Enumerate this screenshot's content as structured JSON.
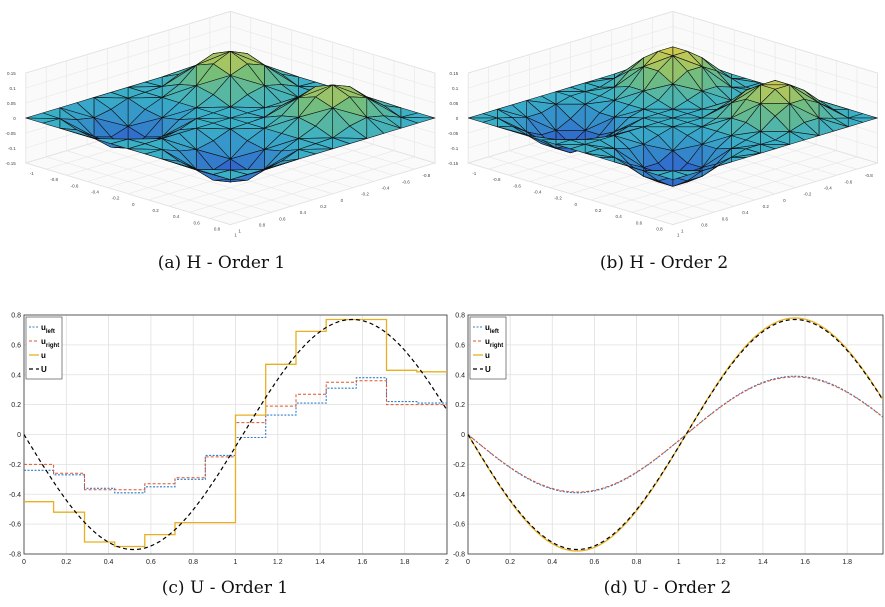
{
  "panels": [
    {
      "caption": "(a) H - Order 1"
    },
    {
      "caption": "(b) H - Order 2"
    },
    {
      "caption": "(c) U - Order 1"
    },
    {
      "caption": "(d) U - Order 2"
    }
  ],
  "colors": {
    "u_left": "#2f7fd0",
    "u_right": "#e0542a",
    "u": "#e8b020",
    "U": "#000000",
    "grid": "#e0e0e0",
    "axis": "#333333",
    "surface_peak": "#f2d040",
    "surface_trough": "#2a3fd0",
    "surface_flat": "#3ab0c8"
  },
  "chart_data": [
    {
      "type": "surface",
      "caption": "(a) H - Order 1",
      "zticks": [
        "0.15",
        "0.1",
        "0.05",
        "0",
        "-0.05",
        "-0.1",
        "-0.15"
      ],
      "xticks": [
        "-1",
        "-0.8",
        "-0.6",
        "-0.4",
        "-0.2",
        "0",
        "0.2",
        "0.4",
        "0.6",
        "0.8",
        "1"
      ],
      "yticks": [
        "-1",
        "-0.8",
        "-0.6",
        "-0.4",
        "-0.2",
        "0",
        "0.2",
        "0.4",
        "0.6",
        "0.8",
        "1"
      ],
      "zlim": [
        -0.15,
        0.15
      ],
      "peaks": 2,
      "troughs": 2
    },
    {
      "type": "surface",
      "caption": "(b) H - Order 2",
      "zticks": [
        "0.15",
        "0.1",
        "0.05",
        "0",
        "-0.05",
        "-0.1",
        "-0.15"
      ],
      "xticks": [
        "-1",
        "-0.8",
        "-0.6",
        "-0.4",
        "-0.2",
        "0",
        "0.2",
        "0.4",
        "0.6",
        "0.8",
        "1"
      ],
      "yticks": [
        "-1",
        "-0.8",
        "-0.6",
        "-0.4",
        "-0.2",
        "0",
        "0.2",
        "0.4",
        "0.6",
        "0.8",
        "1"
      ],
      "zlim": [
        -0.15,
        0.15
      ],
      "peaks": 2,
      "troughs": 2
    },
    {
      "type": "line",
      "caption": "(c) U - Order 1",
      "xlim": [
        0,
        2
      ],
      "ylim": [
        -0.8,
        0.8
      ],
      "xticks": [
        0,
        0.2,
        0.4,
        0.6,
        0.8,
        1,
        1.2,
        1.4,
        1.6,
        1.8,
        2
      ],
      "yticks": [
        -0.8,
        -0.6,
        -0.4,
        -0.2,
        0,
        0.2,
        0.4,
        0.6,
        0.8
      ],
      "grid": true,
      "legend": "top-left",
      "series": [
        {
          "name": "u_left",
          "style": "step",
          "x": [
            0,
            0.14,
            0.286,
            0.429,
            0.571,
            0.714,
            0.857,
            1.0,
            1.143,
            1.286,
            1.429,
            1.571,
            1.714,
            1.857,
            2.0
          ],
          "y": [
            -0.24,
            -0.27,
            -0.36,
            -0.39,
            -0.35,
            -0.3,
            -0.14,
            -0.02,
            0.13,
            0.21,
            0.31,
            0.38,
            0.22,
            0.21,
            0.21
          ]
        },
        {
          "name": "u_right",
          "style": "step",
          "x": [
            0,
            0.14,
            0.286,
            0.429,
            0.571,
            0.714,
            0.857,
            1.0,
            1.143,
            1.286,
            1.429,
            1.571,
            1.714,
            1.857,
            2.0
          ],
          "y": [
            -0.2,
            -0.26,
            -0.37,
            -0.37,
            -0.33,
            -0.29,
            -0.15,
            0.08,
            0.19,
            0.27,
            0.35,
            0.36,
            0.2,
            0.2,
            0.2
          ]
        },
        {
          "name": "u",
          "style": "step",
          "x": [
            0,
            0.14,
            0.286,
            0.429,
            0.571,
            0.714,
            0.857,
            1.0,
            1.143,
            1.286,
            1.429,
            1.571,
            1.714,
            1.857,
            2.0
          ],
          "y": [
            -0.45,
            -0.52,
            -0.72,
            -0.75,
            -0.67,
            -0.59,
            -0.59,
            0.13,
            0.47,
            0.69,
            0.77,
            0.77,
            0.43,
            0.42,
            0.42
          ]
        },
        {
          "name": "U",
          "style": "dashed",
          "fn": "sine",
          "amplitude": 0.77,
          "period": 2.07
        }
      ]
    },
    {
      "type": "line",
      "caption": "(d) U - Order 2",
      "xlim": [
        0,
        1.97
      ],
      "ylim": [
        -0.8,
        0.8
      ],
      "xticks": [
        0,
        0.2,
        0.4,
        0.6,
        0.8,
        1,
        1.2,
        1.4,
        1.6,
        1.8
      ],
      "yticks": [
        -0.8,
        -0.6,
        -0.4,
        -0.2,
        0,
        0.2,
        0.4,
        0.6,
        0.8
      ],
      "grid": true,
      "legend": "top-left",
      "series": [
        {
          "name": "u_left",
          "style": "line",
          "fn": "sine",
          "amplitude": 0.39,
          "period": 2.07
        },
        {
          "name": "u_right",
          "style": "line",
          "fn": "sine",
          "amplitude": 0.385,
          "period": 2.07
        },
        {
          "name": "u",
          "style": "line",
          "fn": "sine",
          "amplitude": 0.78,
          "period": 2.07
        },
        {
          "name": "U",
          "style": "dashed",
          "fn": "sine",
          "amplitude": 0.77,
          "period": 2.07
        }
      ]
    }
  ]
}
